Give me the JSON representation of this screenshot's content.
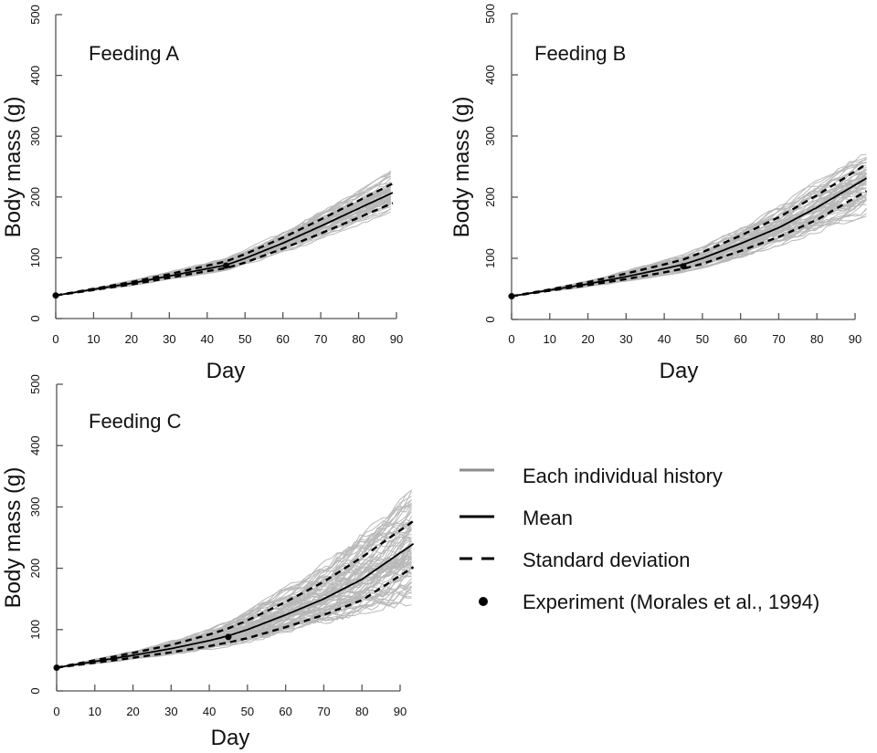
{
  "chart_data": [
    {
      "type": "line",
      "title": "Feeding A",
      "xlabel": "Day",
      "ylabel": "Body mass (g)",
      "xlim": [
        0,
        90
      ],
      "ylim": [
        0,
        500
      ],
      "xticks": [
        "0",
        "10",
        "20",
        "30",
        "40",
        "50",
        "60",
        "70",
        "80",
        "90"
      ],
      "yticks": [
        "0",
        "100",
        "200",
        "300",
        "400",
        "500"
      ],
      "x_end": 89,
      "x": [
        0,
        10,
        20,
        30,
        40,
        45,
        50,
        60,
        70,
        80,
        89
      ],
      "series": [
        {
          "name": "Mean",
          "values": [
            38,
            48,
            58,
            70,
            82,
            88,
            99,
            124,
            152,
            181,
            207
          ]
        },
        {
          "name": "Standard deviation (upper)",
          "values": [
            38,
            49,
            60,
            73,
            87,
            94,
            106,
            133,
            163,
            194,
            222
          ]
        },
        {
          "name": "Standard deviation (lower)",
          "values": [
            38,
            47,
            56,
            67,
            78,
            83,
            92,
            115,
            140,
            166,
            190
          ]
        },
        {
          "name": "Individual histories (max envelope)",
          "values": [
            38,
            50,
            63,
            77,
            92,
            100,
            114,
            143,
            176,
            210,
            245
          ]
        },
        {
          "name": "Individual histories (min envelope)",
          "values": [
            38,
            46,
            54,
            64,
            74,
            79,
            87,
            107,
            129,
            153,
            175
          ]
        }
      ],
      "experiment": [
        {
          "day": 0,
          "mass": 38
        },
        {
          "day": 45,
          "mass": 87
        }
      ],
      "n_individuals": 60
    },
    {
      "type": "line",
      "title": "Feeding B",
      "xlabel": "Day",
      "ylabel": "Body mass (g)",
      "xlim": [
        0,
        90
      ],
      "ylim": [
        0,
        500
      ],
      "xticks": [
        "0",
        "10",
        "20",
        "30",
        "40",
        "50",
        "60",
        "70",
        "80",
        "90"
      ],
      "yticks": [
        "0",
        "100",
        "200",
        "300",
        "400",
        "500"
      ],
      "x_end": 93,
      "x": [
        0,
        10,
        20,
        30,
        40,
        45,
        50,
        60,
        70,
        80,
        93
      ],
      "series": [
        {
          "name": "Mean",
          "values": [
            38,
            48,
            58,
            70,
            83,
            90,
            100,
            124,
            150,
            183,
            231
          ]
        },
        {
          "name": "Standard deviation (upper)",
          "values": [
            38,
            49,
            61,
            75,
            90,
            98,
            110,
            137,
            167,
            203,
            254
          ]
        },
        {
          "name": "Standard deviation (lower)",
          "values": [
            38,
            47,
            56,
            66,
            77,
            83,
            91,
            112,
            135,
            163,
            210
          ]
        },
        {
          "name": "Individual histories (max envelope)",
          "values": [
            38,
            50,
            64,
            80,
            97,
            106,
            120,
            151,
            186,
            228,
            275
          ]
        },
        {
          "name": "Individual histories (min envelope)",
          "values": [
            38,
            46,
            53,
            62,
            72,
            77,
            84,
            101,
            120,
            140,
            169
          ]
        }
      ],
      "experiment": [
        {
          "day": 0,
          "mass": 38
        },
        {
          "day": 45,
          "mass": 87
        }
      ],
      "n_individuals": 60
    },
    {
      "type": "line",
      "title": "Feeding C",
      "xlabel": "Day",
      "ylabel": "Body mass (g)",
      "xlim": [
        0,
        90
      ],
      "ylim": [
        0,
        500
      ],
      "xticks": [
        "0",
        "10",
        "20",
        "30",
        "40",
        "50",
        "60",
        "70",
        "80",
        "90"
      ],
      "yticks": [
        "0",
        "100",
        "200",
        "300",
        "400",
        "500"
      ],
      "x_end": 93.5,
      "x": [
        0,
        10,
        20,
        30,
        40,
        45,
        50,
        60,
        70,
        80,
        93.5
      ],
      "series": [
        {
          "name": "Mean",
          "values": [
            38,
            48,
            58,
            69,
            82,
            90,
            100,
            124,
            150,
            182,
            240
          ]
        },
        {
          "name": "Standard deviation (upper)",
          "values": [
            38,
            50,
            62,
            75,
            92,
            102,
            115,
            145,
            178,
            218,
            277
          ]
        },
        {
          "name": "Standard deviation (lower)",
          "values": [
            38,
            46,
            54,
            63,
            73,
            79,
            86,
            104,
            124,
            148,
            202
          ]
        },
        {
          "name": "Individual histories (max envelope)",
          "values": [
            38,
            52,
            66,
            82,
            102,
            114,
            132,
            170,
            212,
            262,
            330
          ]
        },
        {
          "name": "Individual histories (min envelope)",
          "values": [
            38,
            44,
            51,
            59,
            67,
            72,
            78,
            92,
            108,
            125,
            141
          ]
        }
      ],
      "experiment": [
        {
          "day": 0,
          "mass": 38
        },
        {
          "day": 45,
          "mass": 88
        }
      ],
      "n_individuals": 80
    }
  ],
  "legend": {
    "placement": "bottom-right",
    "items": [
      {
        "label": "Each individual history",
        "style": "gray-solid",
        "color": "#8c8c8c"
      },
      {
        "label": "Mean",
        "style": "black-solid",
        "color": "#000000"
      },
      {
        "label": "Standard deviation",
        "style": "black-dashed",
        "color": "#000000"
      },
      {
        "label": "Experiment (Morales et al., 1994)",
        "style": "black-dot",
        "color": "#000000"
      }
    ]
  },
  "colors": {
    "individual": "#b8b8b8",
    "mean": "#000000",
    "sd": "#000000",
    "axis": "#555555"
  }
}
